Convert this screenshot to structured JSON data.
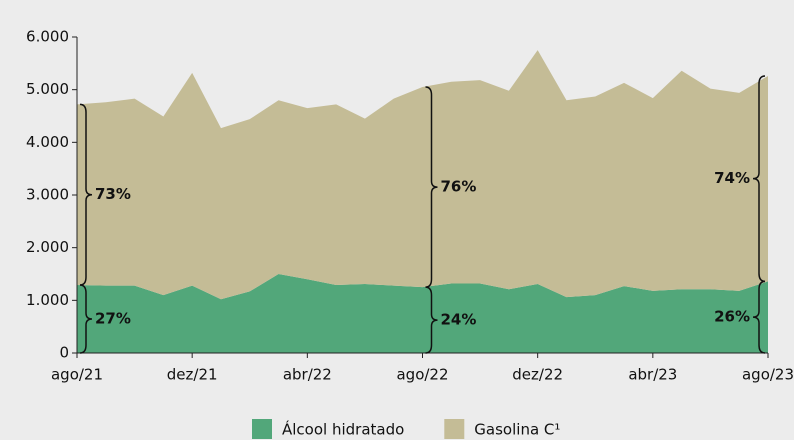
{
  "chart_data": {
    "type": "stacked_area",
    "categories": [
      "ago/21",
      null,
      null,
      null,
      "dez/21",
      null,
      null,
      null,
      "abr/22",
      null,
      null,
      null,
      "ago/22",
      null,
      null,
      null,
      "dez/22",
      null,
      null,
      null,
      "abr/23",
      null,
      null,
      null,
      "ago/23"
    ],
    "series": [
      {
        "name": "Álcool hidratado",
        "color": "#52a77a",
        "values": [
          1290,
          1280,
          1280,
          1100,
          1280,
          1020,
          1170,
          1500,
          1400,
          1290,
          1310,
          1280,
          1250,
          1320,
          1320,
          1210,
          1310,
          1060,
          1100,
          1270,
          1180,
          1210,
          1210,
          1180,
          1360
        ]
      },
      {
        "name": "Gasolina C¹",
        "color": "#c4bc96",
        "values": [
          3430,
          3480,
          3550,
          3390,
          4040,
          3250,
          3270,
          3300,
          3250,
          3430,
          3140,
          3550,
          3800,
          3830,
          3860,
          3770,
          4440,
          3740,
          3770,
          3860,
          3660,
          4150,
          3810,
          3760,
          3900
        ]
      }
    ],
    "ylim": [
      0,
      6000
    ],
    "yticks": [
      0,
      {
        "value": 1000,
        "label": "1.000"
      },
      {
        "value": 2000,
        "label": "2.000"
      },
      {
        "value": 3000,
        "label": "3.000"
      },
      {
        "value": 4000,
        "label": "4.000"
      },
      {
        "value": 5000,
        "label": "5.000"
      },
      {
        "value": 6000,
        "label": "6.000"
      }
    ],
    "annotations": [
      "27%",
      "73%",
      "24%",
      "76%",
      "26%",
      "74%"
    ],
    "legend": "bottom"
  }
}
